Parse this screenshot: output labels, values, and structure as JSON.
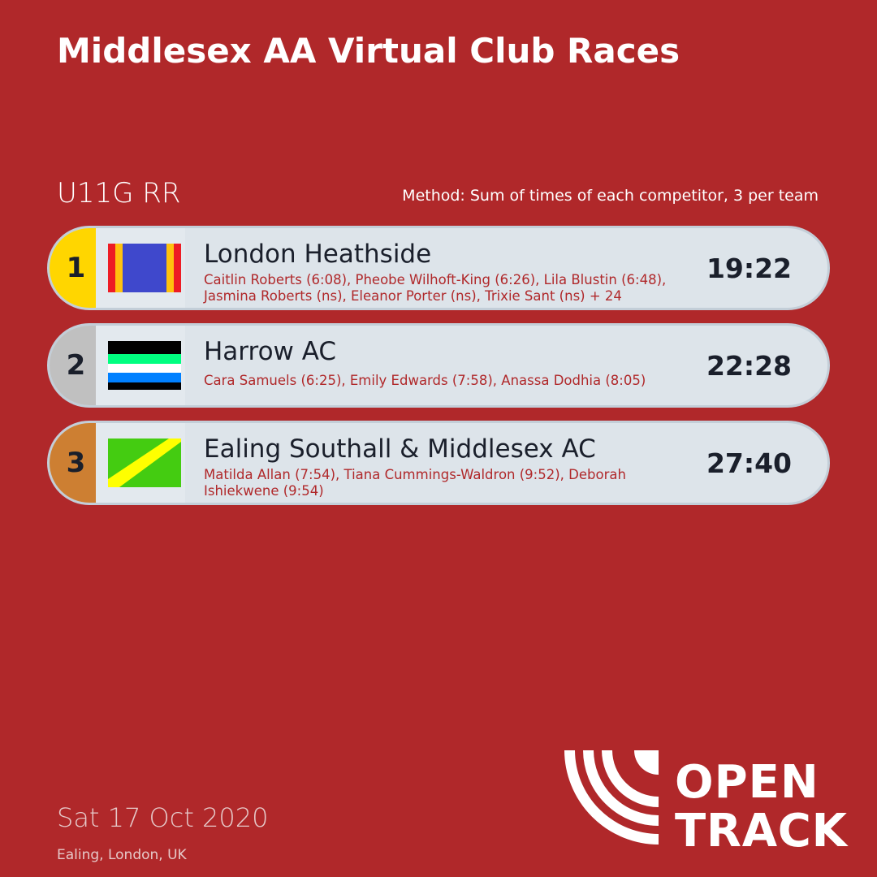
{
  "header": {
    "title": "Middlesex AA Virtual Club Races"
  },
  "event": {
    "name": "U11G RR",
    "method": "Method: Sum of times of each competitor, 3 per team"
  },
  "results": [
    {
      "position": "1",
      "team": "London Heathside",
      "members": "Caitlin Roberts (6:08), Pheobe Wilhoft-King (6:26), Lila Blustin (6:48), Jasmina Roberts (ns), Eleanor Porter (ns), Trixie Sant (ns) + 24",
      "time": "19:22",
      "medal_color": "#ffd600"
    },
    {
      "position": "2",
      "team": "Harrow AC",
      "members": "Cara Samuels (6:25), Emily Edwards (7:58), Anassa Dodhia (8:05)",
      "time": "22:28",
      "medal_color": "#c0c0c0"
    },
    {
      "position": "3",
      "team": "Ealing Southall & Middlesex AC",
      "members": "Matilda Allan (7:54), Tiana Cummings-Waldron (9:52), Deborah Ishiekwene (9:54)",
      "time": "27:40",
      "medal_color": "#cd7f32"
    }
  ],
  "footer": {
    "date": "Sat 17 Oct 2020",
    "location": "Ealing, London, UK",
    "logo_text": "OPEN TRACK"
  },
  "colors": {
    "background": "#b0282a",
    "card": "#dde4ea",
    "text_dark": "#1a1f2b"
  }
}
